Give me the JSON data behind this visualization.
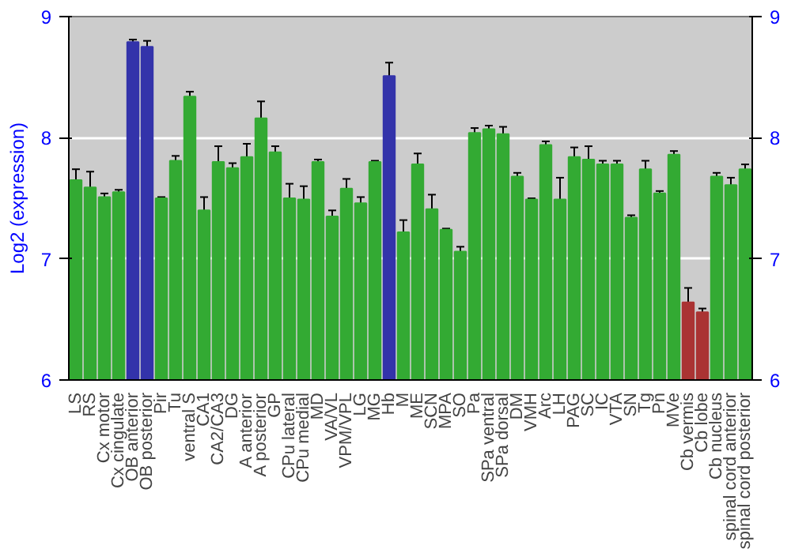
{
  "chart_data": {
    "type": "bar",
    "ylabel": "Log2 (expression)",
    "categories": [
      "LS",
      "RS",
      "Cx motor",
      "Cx cingulate",
      "OB anterior",
      "OB posterior",
      "Pir",
      "Tu",
      "ventral S",
      "CA1",
      "CA2/CA3",
      "DG",
      "A anterior",
      "A posterior",
      "GP",
      "CPu lateral",
      "CPu medial",
      "MD",
      "VA/VL",
      "VPM/VPL",
      "LG",
      "MG",
      "Hb",
      "M",
      "ME",
      "SCN",
      "MPA",
      "SO",
      "Pa",
      "SPa ventral",
      "SPa dorsal",
      "DM",
      "VMH",
      "Arc",
      "LH",
      "PAG",
      "SC",
      "IC",
      "VTA",
      "SN",
      "Tg",
      "Pn",
      "MVe",
      "Cb vermis",
      "Cb lobe",
      "Cb nucleus",
      "spinal cord anterior",
      "spinal cord posterior"
    ],
    "values": [
      7.65,
      7.59,
      7.51,
      7.55,
      8.79,
      8.75,
      7.5,
      7.81,
      8.34,
      7.4,
      7.8,
      7.75,
      7.84,
      8.16,
      7.88,
      7.5,
      7.49,
      7.8,
      7.35,
      7.58,
      7.46,
      7.8,
      8.51,
      7.22,
      7.78,
      7.41,
      7.24,
      7.06,
      8.04,
      8.07,
      8.03,
      7.68,
      7.49,
      7.94,
      7.49,
      7.84,
      7.82,
      7.78,
      7.78,
      7.34,
      7.74,
      7.54,
      7.86,
      6.64,
      6.56,
      7.68,
      7.61,
      7.74
    ],
    "errors": [
      0.09,
      0.13,
      0.03,
      0.02,
      0.02,
      0.05,
      0.01,
      0.04,
      0.04,
      0.11,
      0.13,
      0.04,
      0.11,
      0.14,
      0.05,
      0.12,
      0.11,
      0.02,
      0.05,
      0.08,
      0.05,
      0.01,
      0.11,
      0.1,
      0.09,
      0.12,
      0.01,
      0.04,
      0.04,
      0.03,
      0.06,
      0.03,
      0.01,
      0.03,
      0.18,
      0.08,
      0.11,
      0.03,
      0.03,
      0.02,
      0.07,
      0.02,
      0.03,
      0.12,
      0.03,
      0.03,
      0.06,
      0.04
    ],
    "colors": [
      "#33aa33",
      "#33aa33",
      "#33aa33",
      "#33aa33",
      "#3333aa",
      "#3333aa",
      "#33aa33",
      "#33aa33",
      "#33aa33",
      "#33aa33",
      "#33aa33",
      "#33aa33",
      "#33aa33",
      "#33aa33",
      "#33aa33",
      "#33aa33",
      "#33aa33",
      "#33aa33",
      "#33aa33",
      "#33aa33",
      "#33aa33",
      "#33aa33",
      "#3333aa",
      "#33aa33",
      "#33aa33",
      "#33aa33",
      "#33aa33",
      "#33aa33",
      "#33aa33",
      "#33aa33",
      "#33aa33",
      "#33aa33",
      "#33aa33",
      "#33aa33",
      "#33aa33",
      "#33aa33",
      "#33aa33",
      "#33aa33",
      "#33aa33",
      "#33aa33",
      "#33aa33",
      "#33aa33",
      "#33aa33",
      "#aa3333",
      "#aa3333",
      "#33aa33",
      "#33aa33",
      "#33aa33"
    ],
    "ylim": [
      6,
      9
    ],
    "yticks": [
      6,
      7,
      8,
      9
    ],
    "y2lim": [
      6,
      9
    ],
    "y2ticks": [
      6,
      7,
      8,
      9
    ],
    "grid": "y"
  }
}
